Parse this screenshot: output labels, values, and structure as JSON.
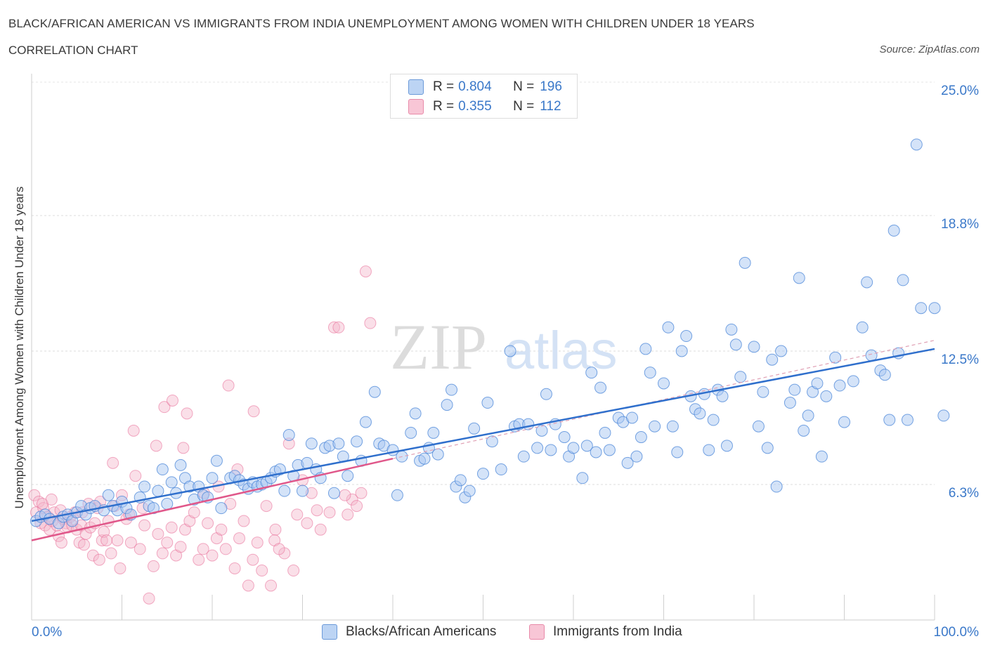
{
  "header": {
    "title": "BLACK/AFRICAN AMERICAN VS IMMIGRANTS FROM INDIA UNEMPLOYMENT AMONG WOMEN WITH CHILDREN UNDER 18 YEARS",
    "subtitle": "CORRELATION CHART",
    "source": "Source: ZipAtlas.com"
  },
  "colors": {
    "blue": "#4a86d8",
    "blue_fill": "#a9c8f1",
    "pink": "#e86a96",
    "pink_fill": "#f5b8cc",
    "tick_text": "#3a78c9"
  },
  "legend": {
    "rows": [
      {
        "r_label": "R =",
        "r_value": "0.804",
        "n_label": "N =",
        "n_value": "196",
        "color": "blue"
      },
      {
        "r_label": "R =",
        "r_value": "0.355",
        "n_label": "N =",
        "n_value": "112",
        "color": "pink"
      }
    ]
  },
  "bottom_legend": {
    "series1": "Blacks/African Americans",
    "series2": "Immigrants from India"
  },
  "chart_data": {
    "type": "scatter",
    "title": "BLACK/AFRICAN AMERICAN VS IMMIGRANTS FROM INDIA UNEMPLOYMENT AMONG WOMEN WITH CHILDREN UNDER 18 YEARS",
    "xlabel": "",
    "ylabel": "Unemployment Among Women with Children Under 18 years",
    "x_tick_labels": [
      "0.0%",
      "100.0%"
    ],
    "y_tick_labels": [
      "6.3%",
      "12.5%",
      "18.8%",
      "25.0%"
    ],
    "y_ticks": [
      6.3,
      12.5,
      18.8,
      25.0
    ],
    "xlim": [
      0,
      100
    ],
    "ylim": [
      0,
      25.0
    ],
    "grid": true,
    "legend_position": "top-center",
    "watermark": "ZIPatlas",
    "series": [
      {
        "name": "Blacks/African Americans",
        "color": "blue",
        "R": 0.804,
        "N": 196,
        "trend": {
          "x": [
            0,
            100
          ],
          "y": [
            4.6,
            12.6
          ]
        },
        "points": [
          [
            0.5,
            4.6
          ],
          [
            1,
            4.8
          ],
          [
            1.5,
            4.9
          ],
          [
            2,
            4.7
          ],
          [
            3,
            4.5
          ],
          [
            3.5,
            4.8
          ],
          [
            4,
            4.9
          ],
          [
            4.5,
            4.6
          ],
          [
            5,
            5.0
          ],
          [
            5.5,
            5.3
          ],
          [
            6,
            4.9
          ],
          [
            6.5,
            5.2
          ],
          [
            7,
            5.3
          ],
          [
            8,
            5.1
          ],
          [
            8.5,
            5.8
          ],
          [
            9,
            5.3
          ],
          [
            9.5,
            5.1
          ],
          [
            10,
            5.5
          ],
          [
            10.5,
            5.2
          ],
          [
            11,
            4.9
          ],
          [
            12,
            5.7
          ],
          [
            12.5,
            6.2
          ],
          [
            13,
            5.3
          ],
          [
            13.5,
            5.2
          ],
          [
            14,
            6.0
          ],
          [
            14.5,
            7.0
          ],
          [
            15,
            5.4
          ],
          [
            15.5,
            6.4
          ],
          [
            16,
            5.9
          ],
          [
            16.5,
            7.2
          ],
          [
            17,
            6.6
          ],
          [
            17.5,
            6.2
          ],
          [
            18,
            5.6
          ],
          [
            18.5,
            6.2
          ],
          [
            19,
            5.8
          ],
          [
            19.5,
            5.7
          ],
          [
            20,
            6.6
          ],
          [
            20.5,
            7.4
          ],
          [
            21,
            5.2
          ],
          [
            22,
            6.6
          ],
          [
            22.5,
            6.7
          ],
          [
            23,
            6.5
          ],
          [
            23.5,
            6.3
          ],
          [
            24,
            6.1
          ],
          [
            24.5,
            6.4
          ],
          [
            25,
            6.2
          ],
          [
            25.5,
            6.3
          ],
          [
            26,
            6.4
          ],
          [
            26.5,
            6.6
          ],
          [
            27,
            6.9
          ],
          [
            27.5,
            7.0
          ],
          [
            28,
            6.0
          ],
          [
            28.5,
            8.6
          ],
          [
            29,
            6.7
          ],
          [
            29.5,
            7.2
          ],
          [
            30,
            6.0
          ],
          [
            30.5,
            7.3
          ],
          [
            31,
            8.2
          ],
          [
            31.5,
            7.0
          ],
          [
            32,
            6.6
          ],
          [
            32.5,
            8.0
          ],
          [
            33,
            8.1
          ],
          [
            33.5,
            5.9
          ],
          [
            34,
            8.2
          ],
          [
            34.5,
            7.6
          ],
          [
            35,
            6.7
          ],
          [
            36,
            8.3
          ],
          [
            36.5,
            7.4
          ],
          [
            37,
            9.2
          ],
          [
            38,
            10.6
          ],
          [
            38.5,
            8.2
          ],
          [
            39,
            8.1
          ],
          [
            40,
            7.9
          ],
          [
            40.5,
            5.8
          ],
          [
            41,
            7.6
          ],
          [
            42,
            8.7
          ],
          [
            42.5,
            9.6
          ],
          [
            43,
            7.4
          ],
          [
            43.5,
            7.5
          ],
          [
            44,
            8.0
          ],
          [
            44.5,
            8.7
          ],
          [
            45,
            7.7
          ],
          [
            46,
            10.0
          ],
          [
            46.5,
            10.7
          ],
          [
            47,
            6.2
          ],
          [
            47.5,
            6.5
          ],
          [
            48,
            5.7
          ],
          [
            48.5,
            6.0
          ],
          [
            49,
            8.9
          ],
          [
            50,
            6.8
          ],
          [
            50.5,
            10.1
          ],
          [
            51,
            8.3
          ],
          [
            52,
            7.0
          ],
          [
            53,
            12.5
          ],
          [
            53.5,
            9.0
          ],
          [
            54,
            9.1
          ],
          [
            54.5,
            7.6
          ],
          [
            55,
            9.1
          ],
          [
            56,
            8.0
          ],
          [
            56.5,
            8.8
          ],
          [
            57,
            10.5
          ],
          [
            57.5,
            7.9
          ],
          [
            58,
            9.1
          ],
          [
            59,
            8.5
          ],
          [
            59.5,
            7.6
          ],
          [
            60,
            8.0
          ],
          [
            61,
            6.6
          ],
          [
            61.5,
            8.1
          ],
          [
            62,
            11.5
          ],
          [
            62.5,
            7.8
          ],
          [
            63,
            10.8
          ],
          [
            63.5,
            8.7
          ],
          [
            64,
            7.9
          ],
          [
            65,
            9.4
          ],
          [
            65.5,
            9.2
          ],
          [
            66,
            7.3
          ],
          [
            66.5,
            9.4
          ],
          [
            67,
            7.6
          ],
          [
            67.5,
            8.5
          ],
          [
            68,
            12.6
          ],
          [
            68.5,
            11.5
          ],
          [
            69,
            9.0
          ],
          [
            70,
            11.0
          ],
          [
            70.5,
            13.6
          ],
          [
            71,
            9.0
          ],
          [
            71.5,
            7.8
          ],
          [
            72,
            12.5
          ],
          [
            72.5,
            13.2
          ],
          [
            73,
            10.4
          ],
          [
            73.5,
            9.8
          ],
          [
            74,
            9.6
          ],
          [
            74.5,
            10.5
          ],
          [
            75,
            7.9
          ],
          [
            75.5,
            9.3
          ],
          [
            76,
            10.7
          ],
          [
            76.5,
            10.4
          ],
          [
            77,
            8.1
          ],
          [
            77.5,
            13.5
          ],
          [
            78,
            12.8
          ],
          [
            78.5,
            11.3
          ],
          [
            79,
            16.6
          ],
          [
            80,
            12.7
          ],
          [
            80.5,
            9.0
          ],
          [
            81,
            10.6
          ],
          [
            81.5,
            8.0
          ],
          [
            82,
            12.1
          ],
          [
            82.5,
            6.2
          ],
          [
            83,
            12.5
          ],
          [
            84,
            10.1
          ],
          [
            84.5,
            10.7
          ],
          [
            85,
            15.9
          ],
          [
            85.5,
            8.8
          ],
          [
            86,
            9.5
          ],
          [
            86.5,
            10.6
          ],
          [
            87,
            11.0
          ],
          [
            87.5,
            7.6
          ],
          [
            88,
            10.4
          ],
          [
            89,
            12.2
          ],
          [
            89.5,
            10.9
          ],
          [
            90,
            9.2
          ],
          [
            91,
            11.1
          ],
          [
            92,
            13.6
          ],
          [
            92.5,
            15.7
          ],
          [
            93,
            12.3
          ],
          [
            94,
            11.6
          ],
          [
            94.5,
            11.4
          ],
          [
            95,
            9.3
          ],
          [
            95.5,
            18.1
          ],
          [
            96,
            12.4
          ],
          [
            96.5,
            15.8
          ],
          [
            97,
            9.3
          ],
          [
            98,
            22.1
          ],
          [
            98.5,
            14.5
          ],
          [
            100,
            14.5
          ],
          [
            101,
            9.5
          ]
        ]
      },
      {
        "name": "Immigrants from India",
        "color": "pink",
        "R": 0.355,
        "N": 112,
        "trend": {
          "x": [
            0,
            40
          ],
          "y": [
            3.7,
            7.5
          ]
        },
        "dashed_extension": {
          "x": [
            40,
            100
          ],
          "y": [
            7.5,
            13.0
          ]
        },
        "points": [
          [
            0.3,
            5.8
          ],
          [
            0.5,
            5.0
          ],
          [
            0.8,
            5.5
          ],
          [
            1,
            4.5
          ],
          [
            1.3,
            5.2
          ],
          [
            1.5,
            4.4
          ],
          [
            1.8,
            4.8
          ],
          [
            2,
            4.2
          ],
          [
            2.3,
            4.6
          ],
          [
            2.5,
            5.0
          ],
          [
            2.8,
            4.4
          ],
          [
            3,
            3.9
          ],
          [
            3.3,
            3.6
          ],
          [
            3.5,
            4.7
          ],
          [
            3.8,
            4.5
          ],
          [
            4,
            4.3
          ],
          [
            4.3,
            4.8
          ],
          [
            4.5,
            4.4
          ],
          [
            4.8,
            5.0
          ],
          [
            5,
            4.2
          ],
          [
            5.3,
            3.6
          ],
          [
            5.5,
            4.4
          ],
          [
            5.8,
            3.5
          ],
          [
            6,
            4.0
          ],
          [
            6.3,
            5.4
          ],
          [
            6.5,
            4.3
          ],
          [
            6.8,
            3.0
          ],
          [
            7,
            4.5
          ],
          [
            7.3,
            5.2
          ],
          [
            7.5,
            2.8
          ],
          [
            7.8,
            3.7
          ],
          [
            8,
            4.1
          ],
          [
            8.3,
            3.7
          ],
          [
            8.5,
            4.6
          ],
          [
            8.8,
            3.1
          ],
          [
            9,
            7.3
          ],
          [
            9.5,
            3.7
          ],
          [
            9.8,
            2.4
          ],
          [
            10,
            5.8
          ],
          [
            10.5,
            4.7
          ],
          [
            11,
            3.6
          ],
          [
            11.3,
            8.8
          ],
          [
            11.5,
            6.7
          ],
          [
            12,
            3.3
          ],
          [
            12.5,
            4.4
          ],
          [
            13,
            1.0
          ],
          [
            13.5,
            2.5
          ],
          [
            13.8,
            8.1
          ],
          [
            14,
            4.0
          ],
          [
            14.5,
            3.1
          ],
          [
            15,
            3.6
          ],
          [
            15.5,
            4.3
          ],
          [
            16,
            3.0
          ],
          [
            16.5,
            3.4
          ],
          [
            17,
            4.2
          ],
          [
            17.5,
            4.6
          ],
          [
            18,
            5.0
          ],
          [
            18.5,
            2.8
          ],
          [
            19,
            3.3
          ],
          [
            19.5,
            4.5
          ],
          [
            20,
            3.0
          ],
          [
            20.5,
            3.8
          ],
          [
            21,
            4.2
          ],
          [
            21.5,
            3.3
          ],
          [
            22,
            5.4
          ],
          [
            22.5,
            2.4
          ],
          [
            23,
            3.8
          ],
          [
            23.5,
            4.6
          ],
          [
            24,
            1.6
          ],
          [
            24.5,
            2.8
          ],
          [
            25,
            3.6
          ],
          [
            25.5,
            2.3
          ],
          [
            26,
            5.3
          ],
          [
            26.5,
            1.6
          ],
          [
            27,
            4.2
          ],
          [
            28,
            3.1
          ],
          [
            28.5,
            8.2
          ],
          [
            29,
            2.3
          ],
          [
            30,
            6.5
          ],
          [
            30.5,
            4.5
          ],
          [
            31,
            5.9
          ],
          [
            32,
            4.2
          ],
          [
            33,
            5.0
          ],
          [
            33.5,
            13.6
          ],
          [
            34,
            13.6
          ],
          [
            35,
            4.9
          ],
          [
            35.5,
            5.6
          ],
          [
            36,
            5.3
          ],
          [
            36.5,
            5.9
          ],
          [
            37,
            16.2
          ],
          [
            37.5,
            13.8
          ],
          [
            1.2,
            5.4
          ],
          [
            2.2,
            5.6
          ],
          [
            3.2,
            5.1
          ],
          [
            5.6,
            5.0
          ],
          [
            7.6,
            5.5
          ],
          [
            9.2,
            5.3
          ],
          [
            10.8,
            4.9
          ],
          [
            12.3,
            5.2
          ],
          [
            14.7,
            9.9
          ],
          [
            15.6,
            10.2
          ],
          [
            16.8,
            8.0
          ],
          [
            17.2,
            9.6
          ],
          [
            19.1,
            5.9
          ],
          [
            20.7,
            6.2
          ],
          [
            21.8,
            10.9
          ],
          [
            22.8,
            7.0
          ],
          [
            24.6,
            9.7
          ],
          [
            26.9,
            3.7
          ],
          [
            27.4,
            3.3
          ],
          [
            29.4,
            4.9
          ],
          [
            31.6,
            5.1
          ],
          [
            34.7,
            5.8
          ]
        ]
      }
    ]
  }
}
